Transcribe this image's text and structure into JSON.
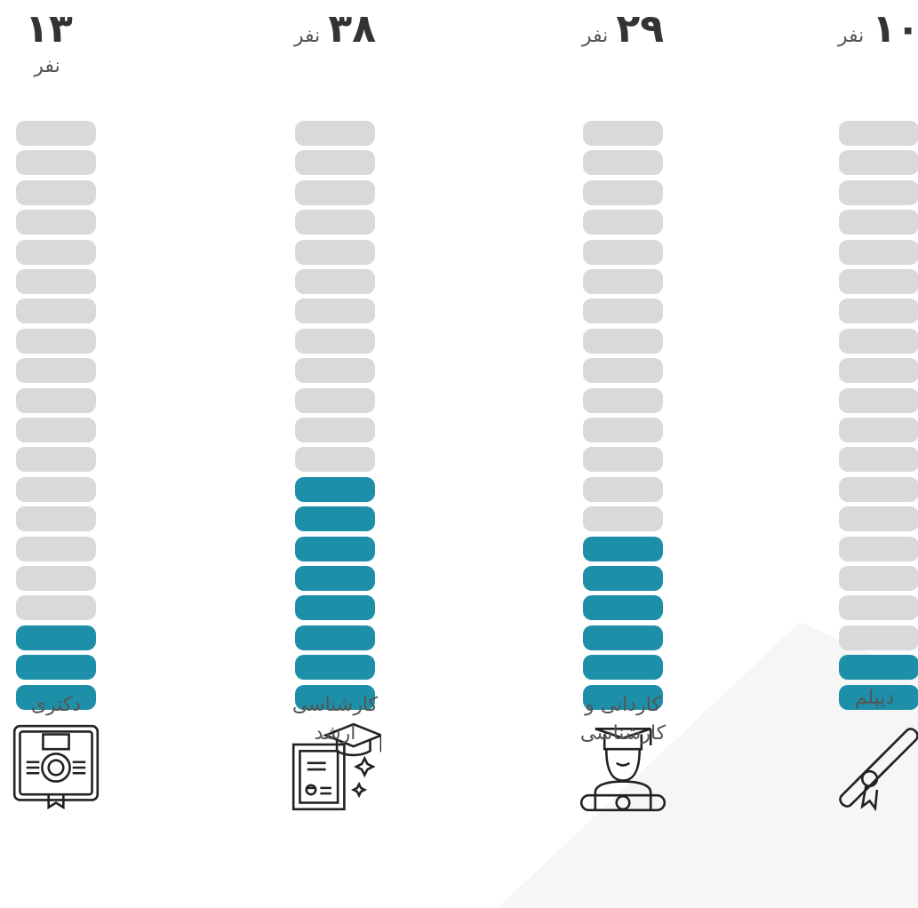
{
  "columns": [
    {
      "count": "۱۳",
      "unit": "نفر",
      "label": "دکتری",
      "segments": 20,
      "filled": 3
    },
    {
      "count": "۳۸",
      "unit": "نفر",
      "label": "کارشناسی ارشد",
      "segments": 20,
      "filled": 8
    },
    {
      "count": "۲۹",
      "unit": "نفر",
      "label": "کاردانی و کارشناسی",
      "segments": 20,
      "filled": 6
    },
    {
      "count": "۱۰",
      "unit": "نفر",
      "label": "دیپلم",
      "segments": 20,
      "filled": 2
    }
  ]
}
